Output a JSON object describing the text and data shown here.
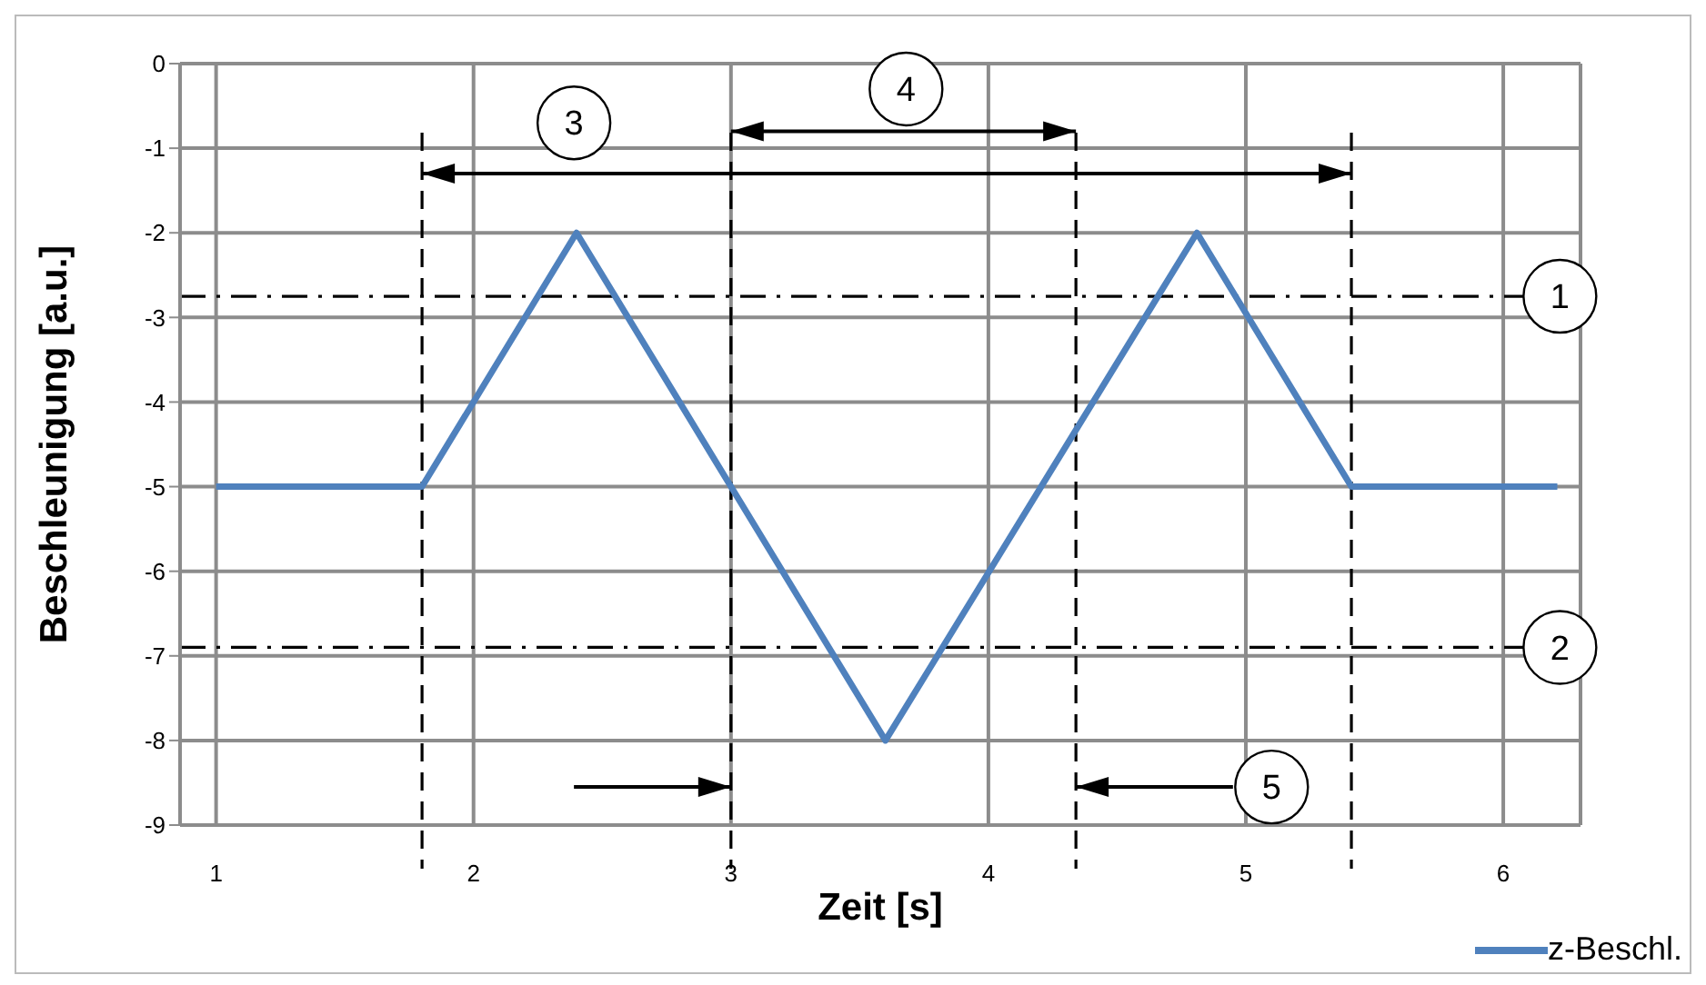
{
  "chart_data": {
    "type": "line",
    "xlabel": "Zeit [s]",
    "ylabel": "Beschleunigung [a.u.]",
    "x": [
      1,
      1.8,
      2.4,
      3.0,
      3.6,
      4.81,
      5.41,
      6.21
    ],
    "series": [
      {
        "name": "z-Beschl.",
        "color": "#4f81bd",
        "values": [
          -5,
          -5,
          -2,
          -5,
          -8,
          -2,
          -5,
          -5
        ]
      }
    ],
    "xlim": [
      0.86,
      6.3
    ],
    "xticks": [
      1,
      2,
      3,
      4,
      5,
      6
    ],
    "ylim": [
      -9,
      0
    ],
    "yticks": [
      0,
      -1,
      -2,
      -3,
      -4,
      -5,
      -6,
      -7,
      -8,
      -9
    ],
    "grid": true,
    "legend": "bottom right",
    "marker": "none",
    "line_style": "solid",
    "ref_lines": [
      {
        "axis": "y",
        "value": -2.75,
        "label": null,
        "color": "#000000",
        "line_style": "dashdot"
      },
      {
        "axis": "y",
        "value": -6.9,
        "label": null,
        "color": "#000000",
        "line_style": "dashdot"
      },
      {
        "axis": "x",
        "value": 1.8,
        "label": null,
        "color": "#000000",
        "line_style": "dashed"
      },
      {
        "axis": "x",
        "value": 3.0,
        "label": null,
        "color": "#000000",
        "line_style": "dashed"
      },
      {
        "axis": "x",
        "value": 4.34,
        "label": null,
        "color": "#000000",
        "line_style": "dashed"
      },
      {
        "axis": "x",
        "value": 5.41,
        "label": null,
        "color": "#000000",
        "line_style": "dashed"
      }
    ],
    "annotations": [
      {
        "text": "3",
        "x": 2.39,
        "y": -0.7
      },
      {
        "text": "4",
        "x": 3.68,
        "y": -0.3
      },
      {
        "text": "5",
        "x": 5.1,
        "y": -8.55
      },
      {
        "text": "1",
        "x": 6.22,
        "y": -2.75
      },
      {
        "text": "2",
        "x": 6.22,
        "y": -6.9
      }
    ]
  }
}
